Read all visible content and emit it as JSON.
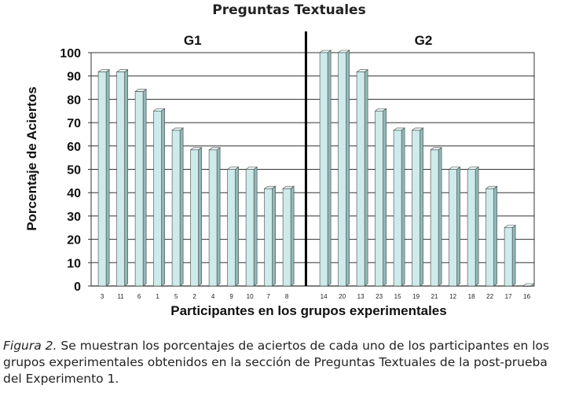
{
  "chart_data": {
    "type": "bar",
    "title": "Preguntas Textuales",
    "xlabel": "Participantes en los grupos experimentales",
    "ylabel": "Porcentaje de Aciertos",
    "ylim": [
      0,
      100
    ],
    "yticks": [
      0,
      10,
      20,
      30,
      40,
      50,
      60,
      70,
      80,
      90,
      100
    ],
    "grid": true,
    "groups": [
      {
        "name": "G1",
        "categories": [
          "3",
          "11",
          "6",
          "1",
          "5",
          "2",
          "4",
          "9",
          "10",
          "7",
          "8"
        ],
        "values": [
          91.7,
          91.7,
          83.3,
          75,
          66.7,
          58.3,
          58.3,
          50,
          50,
          41.7,
          41.7
        ]
      },
      {
        "name": "G2",
        "categories": [
          "14",
          "20",
          "13",
          "23",
          "15",
          "19",
          "21",
          "12",
          "18",
          "22",
          "17",
          "16"
        ],
        "values": [
          100,
          100,
          91.7,
          75,
          66.7,
          66.7,
          58.3,
          50,
          50,
          41.7,
          25,
          0
        ]
      }
    ],
    "bar_color": "#cdebea",
    "bar_top_color": "#e6f6f5",
    "bar_side_color": "#8fb9b8"
  },
  "caption": {
    "lead": "Figura 2.",
    "text": "Se muestran los porcentajes de aciertos de cada uno de los participantes en los grupos experimentales obtenidos en la sección de Preguntas Textuales de la post-prueba del Experimento 1."
  }
}
